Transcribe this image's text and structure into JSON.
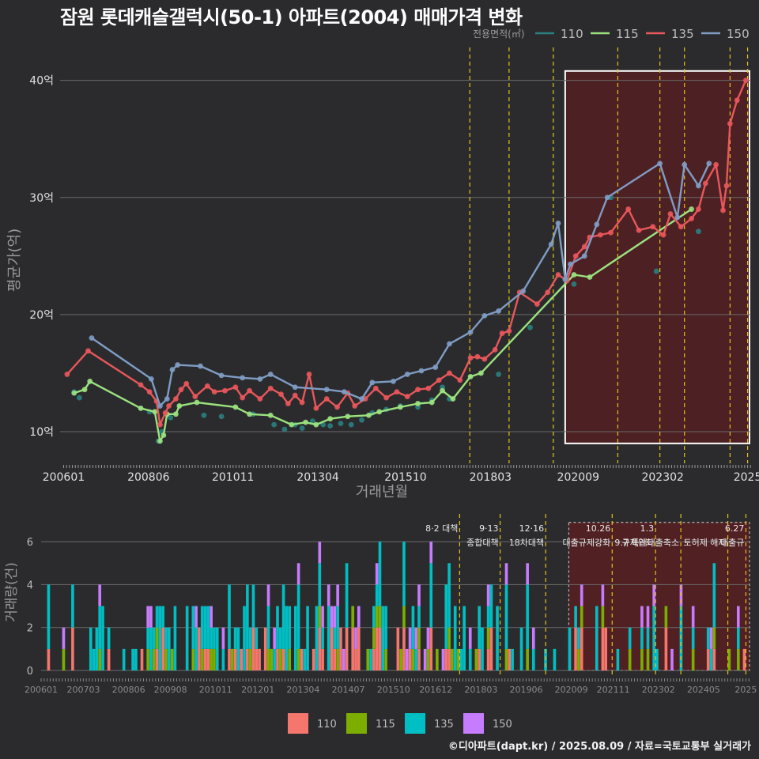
{
  "page": {
    "title": "잠원 롯데캐슬갤럭시(50-1) 아파트(2004) 매매가격 변화",
    "credit": "©디아파트(dapt.kr) / 2025.08.09 / 자료=국토교통부 실거래가"
  },
  "colors": {
    "background": "#2b2b2d",
    "grid": "#6a6a6a",
    "s110_top": "#2a7f80",
    "s115_top": "#9be27f",
    "s135_top": "#e8575b",
    "s150_top": "#7f9cc4",
    "s110_bar": "#f4766d",
    "s115_bar": "#7cae00",
    "s135_bar": "#00bfc4",
    "s150_bar": "#c77cff",
    "policy_line": "#e6c21a",
    "highlight_fill": "#5a1e21",
    "highlight_box": "#ffffff"
  },
  "chart_data": [
    {
      "type": "line",
      "xlabel": "거래년월",
      "ylabel": "평균가(억)",
      "ylim": [
        7.3,
        42.0
      ],
      "yticks": [
        10,
        20,
        30,
        40
      ],
      "ytick_labels": [
        "10억",
        "20억",
        "30억",
        "40억"
      ],
      "x_tick_labels": [
        "200601",
        "200806",
        "201011",
        "201304",
        "201510",
        "201803",
        "202009",
        "202302",
        "2025"
      ],
      "x_tick_years": [
        2006.0,
        2008.42,
        2010.83,
        2013.25,
        2015.75,
        2018.17,
        2020.67,
        2023.08,
        2025.5
      ],
      "xlim": [
        2005.9,
        2025.6
      ],
      "legend_title": "전용면적(㎡)",
      "legend_position": "top-right",
      "highlight_region": [
        2020.3,
        2025.6
      ],
      "policy_lines": [
        2017.58,
        2018.7,
        2019.96,
        2021.8,
        2023.0,
        2023.7,
        2025.0,
        2025.5
      ],
      "series": [
        {
          "name": "110",
          "color_key": "s110_top",
          "line": false,
          "points": [
            [
              2006.3,
              13.4
            ],
            [
              2006.45,
              12.9
            ],
            [
              2008.2,
              12.0
            ],
            [
              2008.45,
              11.7
            ],
            [
              2008.7,
              9.2
            ],
            [
              2008.8,
              10.0
            ],
            [
              2009.05,
              11.2
            ],
            [
              2010.0,
              11.4
            ],
            [
              2010.5,
              11.3
            ],
            [
              2011.4,
              11.5
            ],
            [
              2012.0,
              10.6
            ],
            [
              2012.3,
              10.2
            ],
            [
              2012.6,
              10.6
            ],
            [
              2012.8,
              10.3
            ],
            [
              2013.1,
              10.9
            ],
            [
              2013.4,
              10.6
            ],
            [
              2013.6,
              10.5
            ],
            [
              2013.9,
              10.7
            ],
            [
              2014.2,
              10.6
            ],
            [
              2014.5,
              11.0
            ],
            [
              2014.8,
              11.6
            ],
            [
              2015.2,
              11.9
            ],
            [
              2015.6,
              12.2
            ],
            [
              2016.1,
              12.1
            ],
            [
              2016.5,
              12.7
            ],
            [
              2016.8,
              13.8
            ],
            [
              2017.0,
              12.8
            ],
            [
              2018.4,
              14.9
            ],
            [
              2019.3,
              18.9
            ],
            [
              2020.55,
              22.6
            ],
            [
              2021.6,
              30.0
            ],
            [
              2022.9,
              23.7
            ],
            [
              2024.1,
              27.1
            ]
          ]
        },
        {
          "name": "115",
          "color_key": "s115_top",
          "line": true,
          "points": [
            [
              2006.3,
              13.3
            ],
            [
              2006.6,
              13.6
            ],
            [
              2006.75,
              14.3
            ],
            [
              2008.2,
              12.0
            ],
            [
              2008.6,
              11.7
            ],
            [
              2008.75,
              9.2
            ],
            [
              2008.85,
              9.7
            ],
            [
              2008.95,
              11.5
            ],
            [
              2009.2,
              11.5
            ],
            [
              2009.3,
              12.2
            ],
            [
              2009.8,
              12.5
            ],
            [
              2010.9,
              12.1
            ],
            [
              2011.3,
              11.5
            ],
            [
              2011.9,
              11.4
            ],
            [
              2012.5,
              10.6
            ],
            [
              2012.9,
              10.8
            ],
            [
              2013.2,
              10.6
            ],
            [
              2013.6,
              11.1
            ],
            [
              2014.1,
              11.3
            ],
            [
              2014.7,
              11.4
            ],
            [
              2015.0,
              11.7
            ],
            [
              2015.6,
              12.1
            ],
            [
              2016.1,
              12.4
            ],
            [
              2016.5,
              12.5
            ],
            [
              2016.8,
              13.5
            ],
            [
              2017.1,
              12.8
            ],
            [
              2017.6,
              14.7
            ],
            [
              2017.9,
              15.0
            ],
            [
              2020.55,
              23.4
            ],
            [
              2021.0,
              23.2
            ],
            [
              2023.9,
              29.0
            ]
          ]
        },
        {
          "name": "135",
          "color_key": "s135_top",
          "line": true,
          "points": [
            [
              2006.1,
              14.9
            ],
            [
              2006.7,
              16.9
            ],
            [
              2008.2,
              14.0
            ],
            [
              2008.45,
              13.4
            ],
            [
              2008.65,
              12.6
            ],
            [
              2008.75,
              10.6
            ],
            [
              2008.9,
              11.6
            ],
            [
              2009.0,
              12.2
            ],
            [
              2009.2,
              12.8
            ],
            [
              2009.35,
              13.6
            ],
            [
              2009.5,
              14.1
            ],
            [
              2009.75,
              13.0
            ],
            [
              2010.1,
              13.9
            ],
            [
              2010.3,
              13.4
            ],
            [
              2010.6,
              13.5
            ],
            [
              2010.9,
              13.8
            ],
            [
              2011.1,
              12.9
            ],
            [
              2011.3,
              13.5
            ],
            [
              2011.6,
              12.8
            ],
            [
              2011.9,
              13.7
            ],
            [
              2012.2,
              13.2
            ],
            [
              2012.4,
              12.4
            ],
            [
              2012.6,
              13.1
            ],
            [
              2012.8,
              12.5
            ],
            [
              2013.0,
              14.9
            ],
            [
              2013.2,
              12.0
            ],
            [
              2013.5,
              12.8
            ],
            [
              2013.8,
              12.1
            ],
            [
              2014.1,
              13.3
            ],
            [
              2014.3,
              12.2
            ],
            [
              2014.6,
              12.8
            ],
            [
              2014.9,
              13.7
            ],
            [
              2015.2,
              12.9
            ],
            [
              2015.5,
              13.4
            ],
            [
              2015.8,
              13.0
            ],
            [
              2016.1,
              13.6
            ],
            [
              2016.4,
              13.7
            ],
            [
              2016.7,
              14.4
            ],
            [
              2017.0,
              15.0
            ],
            [
              2017.3,
              14.4
            ],
            [
              2017.6,
              16.3
            ],
            [
              2017.8,
              16.4
            ],
            [
              2018.0,
              16.2
            ],
            [
              2018.3,
              17.0
            ],
            [
              2018.5,
              18.4
            ],
            [
              2018.7,
              18.6
            ],
            [
              2019.0,
              21.9
            ],
            [
              2019.5,
              20.9
            ],
            [
              2019.8,
              21.9
            ],
            [
              2020.1,
              23.4
            ],
            [
              2020.35,
              22.9
            ],
            [
              2020.6,
              25.0
            ],
            [
              2020.85,
              25.8
            ],
            [
              2021.0,
              26.6
            ],
            [
              2021.3,
              26.8
            ],
            [
              2021.6,
              27.0
            ],
            [
              2022.1,
              29.0
            ],
            [
              2022.4,
              27.2
            ],
            [
              2022.8,
              27.5
            ],
            [
              2023.1,
              26.8
            ],
            [
              2023.3,
              28.6
            ],
            [
              2023.6,
              27.5
            ],
            [
              2023.9,
              28.2
            ],
            [
              2024.1,
              29.0
            ],
            [
              2024.3,
              31.2
            ],
            [
              2024.6,
              32.8
            ],
            [
              2024.8,
              28.9
            ],
            [
              2024.9,
              31.0
            ],
            [
              2025.0,
              36.3
            ],
            [
              2025.2,
              38.3
            ],
            [
              2025.45,
              40.0
            ]
          ]
        },
        {
          "name": "150",
          "color_key": "s150_top",
          "line": true,
          "points": [
            [
              2006.8,
              18.0
            ],
            [
              2008.5,
              14.5
            ],
            [
              2008.75,
              12.2
            ],
            [
              2008.95,
              12.8
            ],
            [
              2009.1,
              15.3
            ],
            [
              2009.25,
              15.7
            ],
            [
              2009.9,
              15.6
            ],
            [
              2010.5,
              14.8
            ],
            [
              2011.1,
              14.6
            ],
            [
              2011.6,
              14.5
            ],
            [
              2011.9,
              14.9
            ],
            [
              2012.6,
              13.8
            ],
            [
              2013.5,
              13.6
            ],
            [
              2014.0,
              13.4
            ],
            [
              2014.5,
              12.8
            ],
            [
              2014.8,
              14.2
            ],
            [
              2015.4,
              14.3
            ],
            [
              2015.8,
              14.9
            ],
            [
              2016.2,
              15.2
            ],
            [
              2016.6,
              15.5
            ],
            [
              2017.0,
              17.5
            ],
            [
              2017.6,
              18.5
            ],
            [
              2018.0,
              19.9
            ],
            [
              2018.4,
              20.3
            ],
            [
              2019.1,
              22.0
            ],
            [
              2019.9,
              26.0
            ],
            [
              2020.1,
              27.8
            ],
            [
              2020.3,
              23.0
            ],
            [
              2020.45,
              24.3
            ],
            [
              2020.85,
              25.0
            ],
            [
              2021.2,
              27.7
            ],
            [
              2021.5,
              30.0
            ],
            [
              2023.0,
              32.9
            ],
            [
              2023.5,
              28.3
            ],
            [
              2023.7,
              32.8
            ],
            [
              2024.1,
              31.0
            ],
            [
              2024.4,
              32.9
            ]
          ]
        }
      ]
    },
    {
      "type": "bar",
      "stacked": true,
      "ylabel": "거래량(건)",
      "ylim": [
        0,
        7
      ],
      "yticks": [
        0,
        2,
        4,
        6
      ],
      "x_tick_labels": [
        "200601",
        "200703",
        "200806",
        "200908",
        "201011",
        "201201",
        "201304",
        "201407",
        "201510",
        "201612",
        "201803",
        "201906",
        "202009",
        "202111",
        "202302",
        "202405",
        "2025"
      ],
      "x_tick_years": [
        2006.0,
        2007.17,
        2008.42,
        2009.58,
        2010.83,
        2012.0,
        2013.25,
        2014.5,
        2015.75,
        2016.92,
        2018.17,
        2019.42,
        2020.67,
        2021.83,
        2023.08,
        2024.33,
        2025.5
      ],
      "highlight_region": [
        2020.6,
        2025.6
      ],
      "policy_lines": [
        {
          "x": 2017.58,
          "label": "8·2 대책",
          "label2": ""
        },
        {
          "x": 2018.7,
          "label": "9·13",
          "label2": "종합대책"
        },
        {
          "x": 2019.96,
          "label": "12·16",
          "label2": "18차대책"
        },
        {
          "x": 2021.8,
          "label": "10.26",
          "label2": "대출규제강화"
        },
        {
          "x": 2023.0,
          "label": "1.3",
          "label2": "규제완화"
        },
        {
          "x": 2023.7,
          "label": "",
          "label2": "9.7 특례대출축소"
        },
        {
          "x": 2025.0,
          "label": "",
          "label2": "토허제 해제"
        },
        {
          "x": 2025.5,
          "label": "6.27",
          "label2": "대출규"
        }
      ],
      "legend": [
        "110",
        "115",
        "135",
        "150"
      ],
      "legend_position": "bottom"
    }
  ]
}
